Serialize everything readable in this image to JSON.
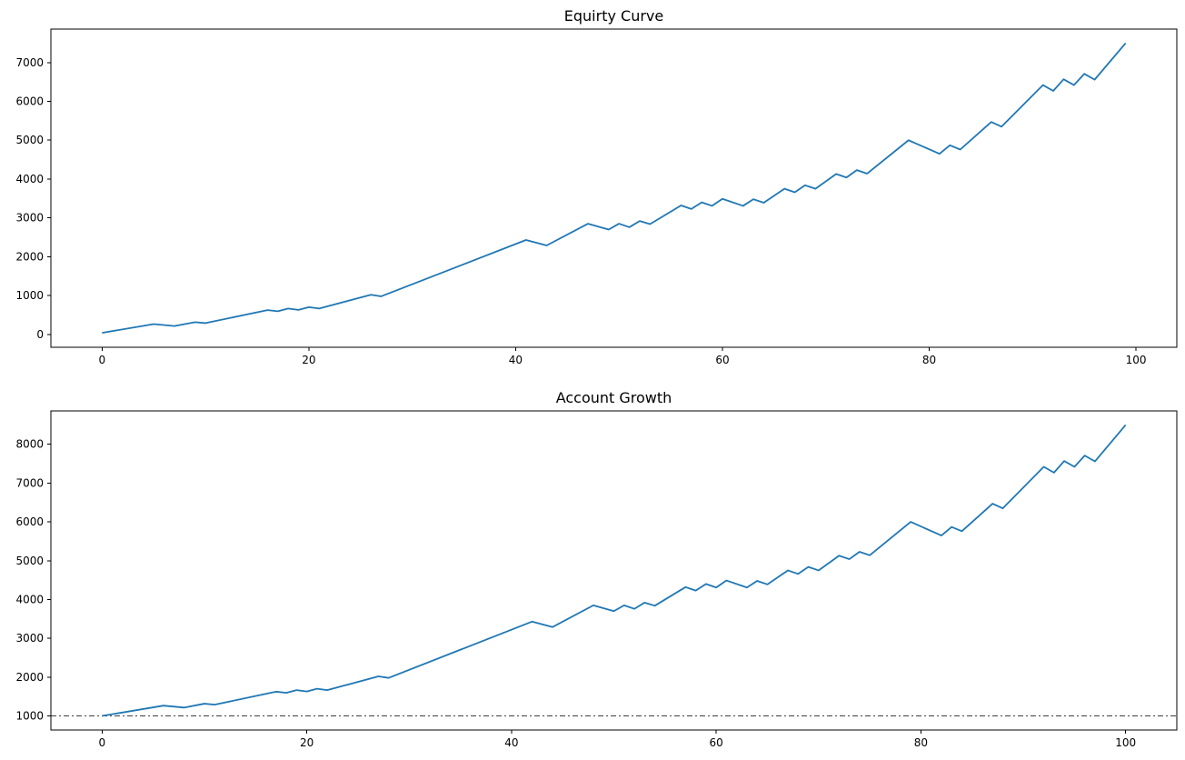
{
  "chart_data": [
    {
      "type": "line",
      "title": "Equirty Curve",
      "xlabel": "",
      "ylabel": "",
      "xlim": [
        -4.95,
        103.95
      ],
      "ylim": [
        -332,
        7862
      ],
      "xticks": [
        0,
        20,
        40,
        60,
        80,
        100
      ],
      "yticks": [
        0,
        1000,
        2000,
        3000,
        4000,
        5000,
        6000,
        7000
      ],
      "grid": false,
      "series": [
        {
          "color": "#1f77b4",
          "x": [
            0,
            5,
            7,
            9,
            10,
            16,
            17,
            18,
            19,
            20,
            21,
            26,
            27,
            41,
            43,
            47,
            49,
            50,
            51,
            52,
            53,
            56,
            57,
            58,
            59,
            60,
            62,
            63,
            64,
            66,
            67,
            68,
            69,
            71,
            72,
            73,
            74,
            78,
            81,
            82,
            83,
            86,
            87,
            91,
            92,
            93,
            94,
            95,
            96,
            99
          ],
          "y": [
            40,
            265,
            215,
            315,
            290,
            625,
            595,
            665,
            630,
            700,
            665,
            1020,
            980,
            2430,
            2290,
            2850,
            2700,
            2850,
            2760,
            2920,
            2840,
            3320,
            3230,
            3400,
            3310,
            3490,
            3310,
            3480,
            3390,
            3750,
            3660,
            3840,
            3750,
            4130,
            4040,
            4230,
            4140,
            5000,
            4650,
            4870,
            4760,
            5470,
            5350,
            6420,
            6270,
            6570,
            6420,
            6710,
            6560,
            7500
          ]
        }
      ]
    },
    {
      "type": "line",
      "title": "Account Growth",
      "xlabel": "",
      "ylabel": "",
      "xlim": [
        -5,
        105
      ],
      "ylim": [
        637,
        8861
      ],
      "xticks": [
        0,
        20,
        40,
        60,
        80,
        100
      ],
      "yticks": [
        1000,
        2000,
        3000,
        4000,
        5000,
        6000,
        7000,
        8000
      ],
      "grid": false,
      "reference_line": {
        "y": 1000,
        "style": "dashdot",
        "color": "#000000"
      },
      "series": [
        {
          "color": "#1f77b4",
          "x": [
            0,
            6,
            8,
            10,
            11,
            17,
            18,
            19,
            20,
            21,
            22,
            27,
            28,
            42,
            44,
            48,
            50,
            51,
            52,
            53,
            54,
            57,
            58,
            59,
            60,
            61,
            63,
            64,
            65,
            67,
            68,
            69,
            70,
            72,
            73,
            74,
            75,
            79,
            82,
            83,
            84,
            87,
            88,
            92,
            93,
            94,
            95,
            96,
            97,
            100
          ],
          "y": [
            1000,
            1265,
            1215,
            1315,
            1290,
            1625,
            1595,
            1665,
            1630,
            1700,
            1665,
            2020,
            1980,
            3430,
            3290,
            3850,
            3700,
            3850,
            3760,
            3920,
            3840,
            4320,
            4230,
            4400,
            4310,
            4490,
            4310,
            4480,
            4390,
            4750,
            4660,
            4840,
            4750,
            5130,
            5040,
            5230,
            5140,
            6000,
            5650,
            5870,
            5760,
            6470,
            6350,
            7420,
            7270,
            7570,
            7420,
            7710,
            7560,
            8500
          ]
        }
      ]
    }
  ]
}
